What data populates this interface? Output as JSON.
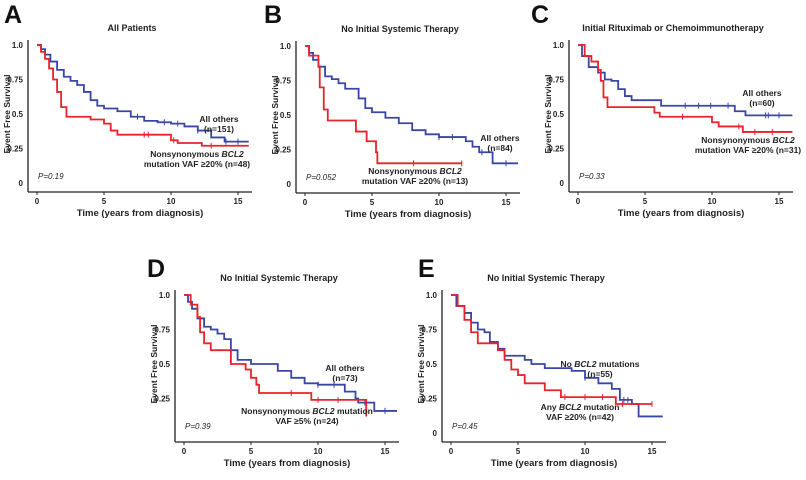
{
  "colors": {
    "mutated": "#e8232a",
    "others": "#3a46a6",
    "axis": "#222222"
  },
  "panels": [
    {
      "letter": "A",
      "title": "All Patients",
      "xlabel": "Time (years from diagnosis)",
      "ylabel": "Event Free Survival",
      "p_value": "P=0.19",
      "xticks": [
        "0",
        "5",
        "10",
        "15"
      ],
      "yticks": [
        "1.0",
        "0.75",
        "0.5",
        "0.25",
        "0"
      ],
      "others_label": [
        [
          {
            "t": "All others"
          }
        ],
        [
          {
            "t": "(n=151)"
          }
        ]
      ],
      "mutated_label": [
        [
          {
            "t": "Nonsynonymous "
          },
          {
            "t": "BCL2",
            "i": true
          }
        ],
        [
          {
            "t": "mutation VAF ≥20% (n=48)"
          }
        ]
      ]
    },
    {
      "letter": "B",
      "title": "No Initial Systemic Therapy",
      "xlabel": "Time (years from diagnosis)",
      "ylabel": "Event Free Survival",
      "p_value": "P=0.052",
      "xticks": [
        "0",
        "5",
        "10",
        "15"
      ],
      "yticks": [
        "1.0",
        "0.75",
        "0.5",
        "0.25",
        "0"
      ],
      "others_label": [
        [
          {
            "t": "All others"
          }
        ],
        [
          {
            "t": "(n=84)"
          }
        ]
      ],
      "mutated_label": [
        [
          {
            "t": "Nonsynonymous "
          },
          {
            "t": "BCL2",
            "i": true
          }
        ],
        [
          {
            "t": "mutation VAF ≥20% (n=13)"
          }
        ]
      ]
    },
    {
      "letter": "C",
      "title": "Initial Rituximab or Chemoimmunotherapy",
      "xlabel": "Time (years from diagnosis)",
      "ylabel": "Event Free Survival",
      "p_value": "P=0.33",
      "xticks": [
        "0",
        "5",
        "10",
        "15"
      ],
      "yticks": [
        "1.0",
        "0.75",
        "0.5",
        "0.25",
        "0"
      ],
      "others_label": [
        [
          {
            "t": "All others"
          }
        ],
        [
          {
            "t": "(n=60)"
          }
        ]
      ],
      "mutated_label": [
        [
          {
            "t": "Nonsynonymous "
          },
          {
            "t": "BCL2",
            "i": true
          }
        ],
        [
          {
            "t": "mutation VAF ≥20% (n=31)"
          }
        ]
      ]
    },
    {
      "letter": "D",
      "title": "No Initial Systemic Therapy",
      "xlabel": "Time (years from diagnosis)",
      "ylabel": "Event Free Survival",
      "p_value": "P=0.39",
      "xticks": [
        "0",
        "5",
        "10",
        "15"
      ],
      "yticks": [
        "1.0",
        "0.75",
        "0.5",
        "0.25"
      ],
      "others_label": [
        [
          {
            "t": "All others"
          }
        ],
        [
          {
            "t": "(n=73)"
          }
        ]
      ],
      "mutated_label": [
        [
          {
            "t": "Nonsynonymous "
          },
          {
            "t": "BCL2",
            "i": true
          },
          {
            "t": " mutation"
          }
        ],
        [
          {
            "t": "VAF ≥5% (n=24)"
          }
        ]
      ]
    },
    {
      "letter": "E",
      "title": "No Initial Systemic Therapy",
      "xlabel": "Time (years from diagnosis)",
      "ylabel": "Event Free Survival",
      "p_value": "P=0.45",
      "xticks": [
        "0",
        "5",
        "10",
        "15"
      ],
      "yticks": [
        "1.0",
        "0.75",
        "0.5",
        "0.25",
        "0"
      ],
      "others_label": [
        [
          {
            "t": "No "
          },
          {
            "t": "BCL2",
            "i": true
          },
          {
            "t": " mutations"
          }
        ],
        [
          {
            "t": "(n=55)"
          }
        ]
      ],
      "mutated_label": [
        [
          {
            "t": "Any "
          },
          {
            "t": "BCL2",
            "i": true
          },
          {
            "t": " mutation"
          }
        ],
        [
          {
            "t": "VAF ≥20% (n=42)"
          }
        ]
      ]
    }
  ],
  "chart_data": [
    {
      "type": "line",
      "title": "All Patients",
      "xlabel": "Time (years from diagnosis)",
      "ylabel": "Event Free Survival",
      "xlim": [
        0,
        16
      ],
      "ylim": [
        0,
        1
      ],
      "step": true,
      "series": [
        {
          "name": "All others (n=151)",
          "color": "#3a46a6",
          "points": [
            [
              0,
              1
            ],
            [
              0.3,
              0.97
            ],
            [
              0.6,
              0.93
            ],
            [
              1,
              0.88
            ],
            [
              1.5,
              0.82
            ],
            [
              2,
              0.77
            ],
            [
              2.5,
              0.74
            ],
            [
              3,
              0.71
            ],
            [
              3.5,
              0.66
            ],
            [
              4,
              0.6
            ],
            [
              4.5,
              0.56
            ],
            [
              5,
              0.54
            ],
            [
              6,
              0.52
            ],
            [
              7,
              0.48
            ],
            [
              8,
              0.45
            ],
            [
              9,
              0.44
            ],
            [
              10,
              0.43
            ],
            [
              11,
              0.41
            ],
            [
              12,
              0.38
            ],
            [
              13,
              0.33
            ],
            [
              14,
              0.3
            ],
            [
              15.8,
              0.3
            ]
          ],
          "censor": [
            7.5,
            9.5,
            10.5,
            12,
            14.1,
            15
          ]
        },
        {
          "name": "Nonsynonymous BCL2 mutation VAF ≥20% (n=48)",
          "color": "#e8232a",
          "points": [
            [
              0,
              1
            ],
            [
              0.3,
              0.95
            ],
            [
              0.6,
              0.9
            ],
            [
              0.9,
              0.83
            ],
            [
              1.2,
              0.75
            ],
            [
              1.5,
              0.66
            ],
            [
              1.8,
              0.55
            ],
            [
              2.2,
              0.48
            ],
            [
              4,
              0.46
            ],
            [
              5,
              0.43
            ],
            [
              5.5,
              0.38
            ],
            [
              6,
              0.35
            ],
            [
              10,
              0.31
            ],
            [
              10.5,
              0.29
            ],
            [
              12.3,
              0.27
            ],
            [
              15.8,
              0.27
            ]
          ],
          "censor": [
            8,
            8.3,
            10.2,
            13
          ]
        }
      ]
    },
    {
      "type": "line",
      "title": "No Initial Systemic Therapy",
      "xlabel": "Time (years from diagnosis)",
      "ylabel": "Event Free Survival",
      "xlim": [
        0,
        16
      ],
      "ylim": [
        0,
        1
      ],
      "step": true,
      "series": [
        {
          "name": "All others (n=84)",
          "color": "#3a46a6",
          "points": [
            [
              0,
              1
            ],
            [
              0.3,
              0.95
            ],
            [
              0.6,
              0.9
            ],
            [
              1,
              0.85
            ],
            [
              1.5,
              0.78
            ],
            [
              2,
              0.76
            ],
            [
              2.5,
              0.73
            ],
            [
              3,
              0.69
            ],
            [
              4,
              0.62
            ],
            [
              4.5,
              0.55
            ],
            [
              5,
              0.52
            ],
            [
              6,
              0.48
            ],
            [
              7,
              0.44
            ],
            [
              8,
              0.39
            ],
            [
              9,
              0.36
            ],
            [
              10,
              0.34
            ],
            [
              12,
              0.31
            ],
            [
              12.5,
              0.27
            ],
            [
              13,
              0.23
            ],
            [
              14,
              0.15
            ],
            [
              15.9,
              0.15
            ]
          ],
          "censor": [
            10,
            11,
            13.2,
            15
          ]
        },
        {
          "name": "Nonsynonymous BCL2 mutation VAF ≥20% (n=13)",
          "color": "#e8232a",
          "points": [
            [
              0,
              1
            ],
            [
              0.3,
              0.93
            ],
            [
              1,
              0.85
            ],
            [
              1.1,
              0.7
            ],
            [
              1.4,
              0.54
            ],
            [
              1.7,
              0.46
            ],
            [
              3.8,
              0.38
            ],
            [
              4.6,
              0.31
            ],
            [
              5.3,
              0.23
            ],
            [
              5.4,
              0.15
            ],
            [
              11.7,
              0.15
            ]
          ],
          "censor": [
            8.1,
            11.7
          ]
        }
      ]
    },
    {
      "type": "line",
      "title": "Initial Rituximab or Chemoimmunotherapy",
      "xlabel": "Time (years from diagnosis)",
      "ylabel": "Event Free Survival",
      "xlim": [
        0,
        16
      ],
      "ylim": [
        0,
        1
      ],
      "step": true,
      "series": [
        {
          "name": "All others (n=60)",
          "color": "#3a46a6",
          "points": [
            [
              0,
              1
            ],
            [
              0.3,
              0.92
            ],
            [
              0.8,
              0.84
            ],
            [
              1.5,
              0.8
            ],
            [
              2,
              0.75
            ],
            [
              2.5,
              0.74
            ],
            [
              3,
              0.68
            ],
            [
              3.5,
              0.63
            ],
            [
              4,
              0.6
            ],
            [
              6.2,
              0.56
            ],
            [
              11.7,
              0.52
            ],
            [
              12.5,
              0.49
            ],
            [
              16,
              0.49
            ]
          ],
          "censor": [
            8,
            9,
            9.9,
            11.2,
            14,
            14.2,
            15
          ]
        },
        {
          "name": "Nonsynonymous BCL2 mutation VAF ≥20% (n=31)",
          "color": "#e8232a",
          "points": [
            [
              0,
              1
            ],
            [
              0.5,
              0.92
            ],
            [
              1,
              0.88
            ],
            [
              1.5,
              0.82
            ],
            [
              1.7,
              0.74
            ],
            [
              1.9,
              0.62
            ],
            [
              2.2,
              0.55
            ],
            [
              5.7,
              0.51
            ],
            [
              6.1,
              0.48
            ],
            [
              10,
              0.44
            ],
            [
              10.5,
              0.41
            ],
            [
              12.3,
              0.37
            ],
            [
              16,
              0.37
            ]
          ],
          "censor": [
            7.8,
            12,
            13.2,
            14.5
          ]
        }
      ]
    },
    {
      "type": "line",
      "title": "No Initial Systemic Therapy",
      "xlabel": "Time (years from diagnosis)",
      "ylabel": "Event Free Survival",
      "xlim": [
        0,
        16
      ],
      "ylim": [
        0,
        1
      ],
      "step": true,
      "series": [
        {
          "name": "All others (n=73)",
          "color": "#3a46a6",
          "points": [
            [
              0,
              1
            ],
            [
              0.3,
              0.95
            ],
            [
              0.6,
              0.9
            ],
            [
              1,
              0.83
            ],
            [
              1.5,
              0.77
            ],
            [
              2,
              0.75
            ],
            [
              2.5,
              0.72
            ],
            [
              3,
              0.68
            ],
            [
              3.5,
              0.6
            ],
            [
              4,
              0.53
            ],
            [
              5,
              0.5
            ],
            [
              7,
              0.45
            ],
            [
              8,
              0.4
            ],
            [
              9,
              0.36
            ],
            [
              10,
              0.35
            ],
            [
              12,
              0.3
            ],
            [
              12.8,
              0.25
            ],
            [
              13,
              0.22
            ],
            [
              14.2,
              0.16
            ],
            [
              15.9,
              0.16
            ]
          ],
          "censor": [
            10,
            11.2,
            13.5,
            15
          ]
        },
        {
          "name": "Nonsynonymous BCL2 mutation VAF ≥5% (n=24)",
          "color": "#e8232a",
          "points": [
            [
              0,
              1
            ],
            [
              0.5,
              0.93
            ],
            [
              1,
              0.84
            ],
            [
              1.2,
              0.73
            ],
            [
              1.5,
              0.65
            ],
            [
              2,
              0.6
            ],
            [
              3.5,
              0.5
            ],
            [
              4.6,
              0.46
            ],
            [
              5,
              0.4
            ],
            [
              5.4,
              0.35
            ],
            [
              5.6,
              0.29
            ],
            [
              9.5,
              0.24
            ],
            [
              13.6,
              0.12
            ]
          ],
          "censor": [
            8,
            10,
            11.5
          ]
        }
      ]
    },
    {
      "type": "line",
      "title": "No Initial Systemic Therapy",
      "xlabel": "Time (years from diagnosis)",
      "ylabel": "Event Free Survival",
      "xlim": [
        0,
        16
      ],
      "ylim": [
        0,
        1
      ],
      "step": true,
      "series": [
        {
          "name": "No BCL2 mutations (n=55)",
          "color": "#3a46a6",
          "points": [
            [
              0,
              1
            ],
            [
              0.4,
              0.92
            ],
            [
              1,
              0.87
            ],
            [
              1.5,
              0.8
            ],
            [
              2,
              0.75
            ],
            [
              2.5,
              0.73
            ],
            [
              2.9,
              0.66
            ],
            [
              3.5,
              0.61
            ],
            [
              4,
              0.56
            ],
            [
              5.5,
              0.53
            ],
            [
              6,
              0.5
            ],
            [
              7,
              0.47
            ],
            [
              9,
              0.45
            ],
            [
              10,
              0.4
            ],
            [
              11,
              0.36
            ],
            [
              12,
              0.32
            ],
            [
              12.6,
              0.24
            ],
            [
              13.5,
              0.21
            ],
            [
              14,
              0.12
            ],
            [
              15.8,
              0.12
            ]
          ],
          "censor": [
            10,
            12.9,
            13.2
          ]
        },
        {
          "name": "Any BCL2 mutation VAF ≥20% (n=42)",
          "color": "#e8232a",
          "points": [
            [
              0,
              1
            ],
            [
              0.5,
              0.92
            ],
            [
              1,
              0.82
            ],
            [
              1.5,
              0.73
            ],
            [
              2,
              0.65
            ],
            [
              3.5,
              0.6
            ],
            [
              4,
              0.53
            ],
            [
              4.5,
              0.46
            ],
            [
              5,
              0.42
            ],
            [
              5.5,
              0.36
            ],
            [
              7,
              0.31
            ],
            [
              8.2,
              0.26
            ],
            [
              12.3,
              0.21
            ],
            [
              15,
              0.21
            ]
          ],
          "censor": [
            8.5,
            10,
            11.3,
            12.8,
            15
          ]
        }
      ]
    }
  ]
}
